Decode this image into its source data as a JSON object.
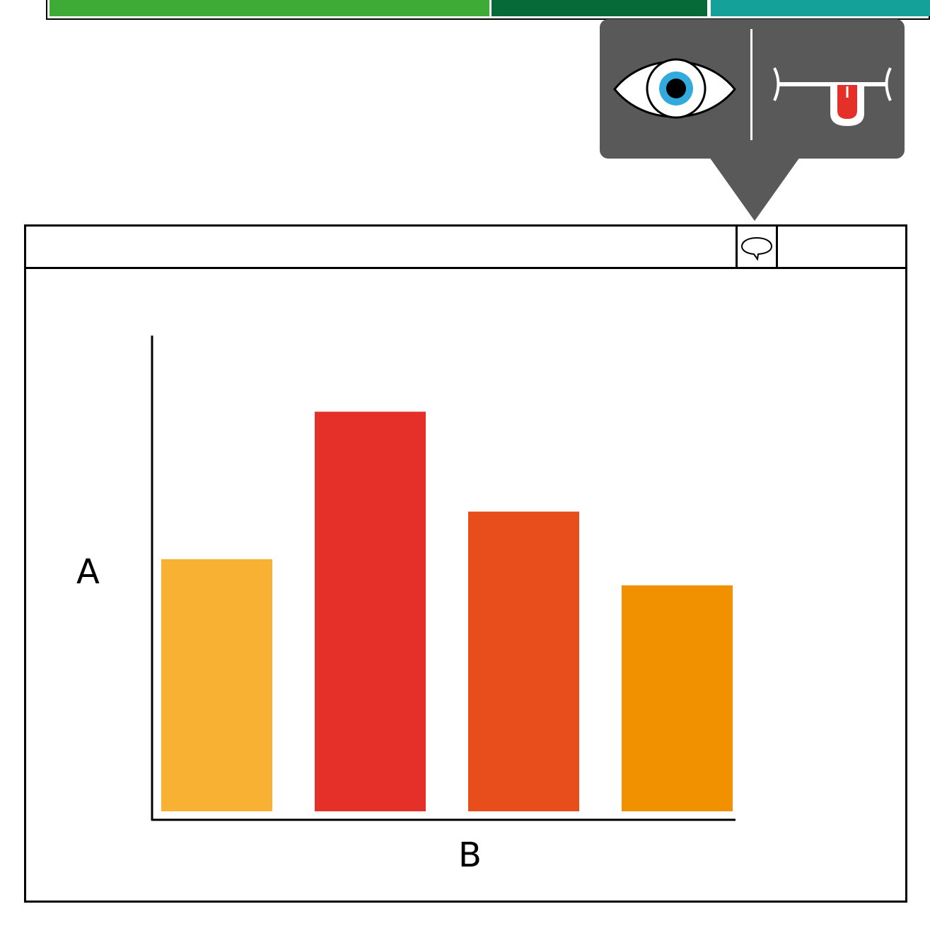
{
  "colors": {
    "top_bar": [
      "#3dab36",
      "#066a38",
      "#14a19a"
    ],
    "popover_bg": "#595959",
    "eye_iris": "#33aadd",
    "tongue": "#e5302a"
  },
  "icons": {
    "popover_left": "eye-icon",
    "popover_right": "tongue-mouth-icon",
    "window_button": "speech-bubble-icon"
  },
  "chart_data": {
    "type": "bar",
    "xlabel": "B",
    "ylabel": "A",
    "categories": [
      "",
      "",
      "",
      ""
    ],
    "values": [
      53,
      84,
      63,
      47.5
    ],
    "ylim": [
      0,
      100
    ],
    "colors": [
      "#f8b133",
      "#e52f29",
      "#e84e1c",
      "#f29100"
    ],
    "grid": false
  }
}
